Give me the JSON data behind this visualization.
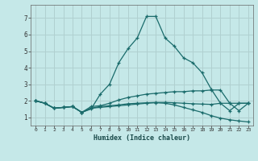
{
  "title": "",
  "xlabel": "Humidex (Indice chaleur)",
  "bg_color": "#c5e8e8",
  "grid_color": "#b0d0d0",
  "line_color": "#1a6b6b",
  "xlim": [
    -0.5,
    23.5
  ],
  "ylim": [
    0.5,
    7.8
  ],
  "xticks": [
    0,
    1,
    2,
    3,
    4,
    5,
    6,
    7,
    8,
    9,
    10,
    11,
    12,
    13,
    14,
    15,
    16,
    17,
    18,
    19,
    20,
    21,
    22,
    23
  ],
  "yticks": [
    1,
    2,
    3,
    4,
    5,
    6,
    7
  ],
  "series": [
    {
      "x": [
        0,
        1,
        2,
        3,
        4,
        5,
        6,
        7,
        8,
        9,
        10,
        11,
        12,
        13,
        14,
        15,
        16,
        17,
        18,
        19,
        20,
        21,
        22,
        23
      ],
      "y": [
        2.0,
        1.85,
        1.55,
        1.6,
        1.65,
        1.3,
        1.5,
        2.4,
        3.0,
        4.3,
        5.15,
        5.8,
        7.1,
        7.1,
        5.8,
        5.3,
        4.6,
        4.3,
        3.7,
        2.7,
        1.85,
        1.4,
        1.85,
        1.85
      ]
    },
    {
      "x": [
        0,
        1,
        2,
        3,
        4,
        5,
        6,
        7,
        8,
        9,
        10,
        11,
        12,
        13,
        14,
        15,
        16,
        17,
        18,
        19,
        20,
        21,
        22,
        23
      ],
      "y": [
        2.0,
        1.85,
        1.55,
        1.6,
        1.65,
        1.3,
        1.65,
        1.7,
        1.85,
        2.05,
        2.2,
        2.3,
        2.4,
        2.45,
        2.5,
        2.55,
        2.55,
        2.6,
        2.6,
        2.65,
        2.65,
        1.85,
        1.4,
        1.85
      ]
    },
    {
      "x": [
        0,
        1,
        2,
        3,
        4,
        5,
        6,
        7,
        8,
        9,
        10,
        11,
        12,
        13,
        14,
        15,
        16,
        17,
        18,
        19,
        20,
        21,
        22,
        23
      ],
      "y": [
        2.0,
        1.85,
        1.55,
        1.6,
        1.65,
        1.3,
        1.55,
        1.6,
        1.65,
        1.7,
        1.75,
        1.8,
        1.85,
        1.88,
        1.85,
        1.75,
        1.6,
        1.45,
        1.3,
        1.1,
        0.95,
        0.85,
        0.78,
        0.72
      ]
    },
    {
      "x": [
        0,
        1,
        2,
        3,
        4,
        5,
        6,
        7,
        8,
        9,
        10,
        11,
        12,
        13,
        14,
        15,
        16,
        17,
        18,
        19,
        20,
        21,
        22,
        23
      ],
      "y": [
        2.0,
        1.85,
        1.55,
        1.6,
        1.65,
        1.3,
        1.55,
        1.65,
        1.7,
        1.75,
        1.82,
        1.85,
        1.88,
        1.9,
        1.9,
        1.88,
        1.85,
        1.82,
        1.8,
        1.78,
        1.85,
        1.85,
        1.85,
        1.85
      ]
    }
  ]
}
